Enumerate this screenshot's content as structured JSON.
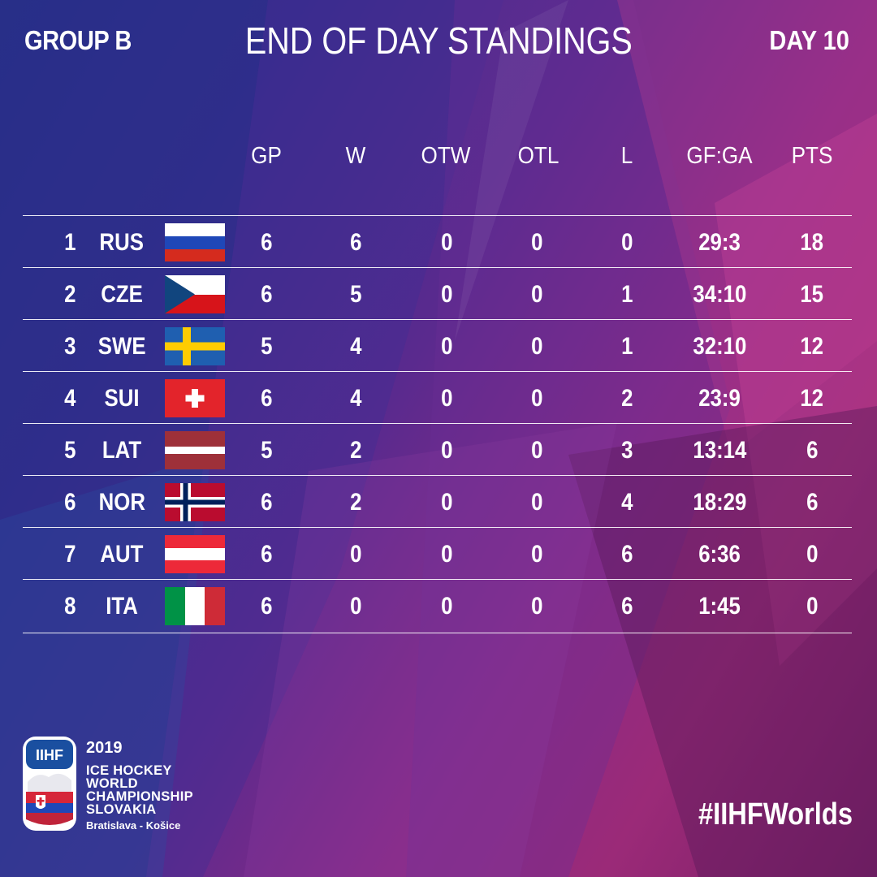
{
  "header": {
    "group": "GROUP B",
    "title": "END OF DAY STANDINGS",
    "day": "DAY 10"
  },
  "columns": [
    "GP",
    "W",
    "OTW",
    "OTL",
    "L",
    "GF:GA",
    "PTS"
  ],
  "standings": [
    {
      "rank": "1",
      "team": "RUS",
      "flag": "russia-flag",
      "gp": "6",
      "w": "6",
      "otw": "0",
      "otl": "0",
      "l": "0",
      "gfga": "29:3",
      "pts": "18"
    },
    {
      "rank": "2",
      "team": "CZE",
      "flag": "czech-flag",
      "gp": "6",
      "w": "5",
      "otw": "0",
      "otl": "0",
      "l": "1",
      "gfga": "34:10",
      "pts": "15"
    },
    {
      "rank": "3",
      "team": "SWE",
      "flag": "sweden-flag",
      "gp": "5",
      "w": "4",
      "otw": "0",
      "otl": "0",
      "l": "1",
      "gfga": "32:10",
      "pts": "12"
    },
    {
      "rank": "4",
      "team": "SUI",
      "flag": "switzerland-flag",
      "gp": "6",
      "w": "4",
      "otw": "0",
      "otl": "0",
      "l": "2",
      "gfga": "23:9",
      "pts": "12"
    },
    {
      "rank": "5",
      "team": "LAT",
      "flag": "latvia-flag",
      "gp": "5",
      "w": "2",
      "otw": "0",
      "otl": "0",
      "l": "3",
      "gfga": "13:14",
      "pts": "6"
    },
    {
      "rank": "6",
      "team": "NOR",
      "flag": "norway-flag",
      "gp": "6",
      "w": "2",
      "otw": "0",
      "otl": "0",
      "l": "4",
      "gfga": "18:29",
      "pts": "6"
    },
    {
      "rank": "7",
      "team": "AUT",
      "flag": "austria-flag",
      "gp": "6",
      "w": "0",
      "otw": "0",
      "otl": "0",
      "l": "6",
      "gfga": "6:36",
      "pts": "0"
    },
    {
      "rank": "8",
      "team": "ITA",
      "flag": "italy-flag",
      "gp": "6",
      "w": "0",
      "otw": "0",
      "otl": "0",
      "l": "6",
      "gfga": "1:45",
      "pts": "0"
    }
  ],
  "footer": {
    "logo_text": "IIHF",
    "year": "2019",
    "event_lines": [
      "ICE HOCKEY",
      "WORLD",
      "CHAMPIONSHIP",
      "SLOVAKIA"
    ],
    "cities": "Bratislava - Košice",
    "hashtag": "#IIHFWorlds"
  },
  "colors": {
    "background_left": "#2a2f86",
    "background_right": "#9b2a78",
    "text": "#ffffff"
  }
}
